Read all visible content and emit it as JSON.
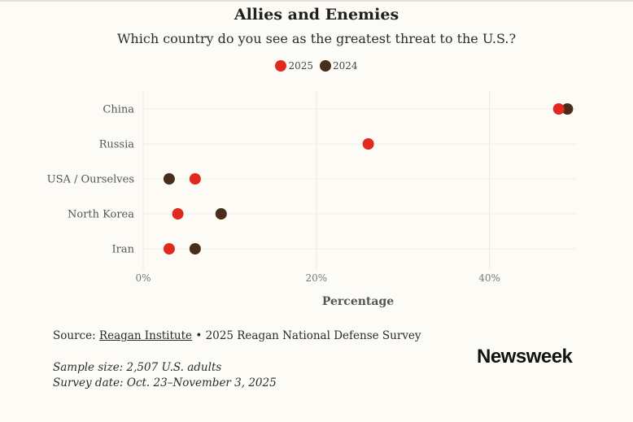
{
  "chart_data": {
    "type": "scatter",
    "title": "Allies and Enemies",
    "subtitle": "Which country do you see as the greatest threat to the U.S.?",
    "categories": [
      "China",
      "Russia",
      "USA / Ourselves",
      "North Korea",
      "Iran"
    ],
    "series": [
      {
        "name": "2025",
        "color": "#e0291f",
        "values": [
          48,
          26,
          6,
          4,
          3
        ]
      },
      {
        "name": "2024",
        "color": "#4a2c1a",
        "values": [
          49,
          null,
          3,
          9,
          6
        ]
      }
    ],
    "xlabel": "Percentage",
    "xlim": [
      0,
      50
    ],
    "xticks": [
      0,
      20,
      40
    ],
    "xtick_labels": [
      "0%",
      "20%",
      "40%"
    ],
    "legend_position": "top-center",
    "grid": true
  },
  "footer": {
    "source_prefix": "Source: ",
    "source_link": "Reagan Institute",
    "source_suffix": " • 2025 Reagan National Defense Survey",
    "sample_size": "Sample size: 2,507 U.S. adults",
    "survey_date": "Survey date: Oct. 23–November 3, 2025"
  },
  "brand": {
    "logo_text": "Newsweek"
  }
}
